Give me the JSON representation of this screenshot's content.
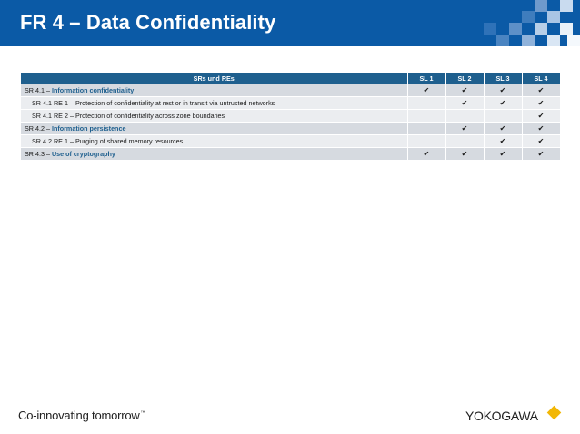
{
  "slide": {
    "title": "FR 4 – Data Confidentiality"
  },
  "table": {
    "headers": [
      "SRs und REs",
      "SL 1",
      "SL 2",
      "SL 3",
      "SL 4"
    ],
    "check_glyph": "✔",
    "rows": [
      {
        "type": "sr",
        "prefix": "SR 4.1 – ",
        "title": "Information confidentiality",
        "levels": [
          true,
          true,
          true,
          true
        ]
      },
      {
        "type": "re",
        "text": "SR 4.1 RE 1 – Protection of confidentiality at rest or in transit via untrusted networks",
        "levels": [
          false,
          true,
          true,
          true
        ]
      },
      {
        "type": "re",
        "text": "SR 4.1 RE 2 – Protection of confidentiality across zone boundaries",
        "levels": [
          false,
          false,
          false,
          true
        ]
      },
      {
        "type": "sr",
        "prefix": "SR 4.2 – ",
        "title": "Information persistence",
        "levels": [
          false,
          true,
          true,
          true
        ]
      },
      {
        "type": "re",
        "text": "SR 4.2 RE 1 – Purging of shared memory resources",
        "levels": [
          false,
          false,
          true,
          true
        ]
      },
      {
        "type": "sr",
        "prefix": "SR 4.3 – ",
        "title": "Use of cryptography",
        "levels": [
          true,
          true,
          true,
          true
        ]
      }
    ]
  },
  "footer": {
    "tagline": "Co-innovating tomorrow",
    "trademark": "™",
    "logo_text": "YOKOGAWA"
  },
  "colors": {
    "header_bg": "#0b5aa6",
    "table_header_bg": "#1e5f8e",
    "sr_row_bg": "#d6dae0",
    "re_row_bg": "#ebedf0",
    "logo_diamond": "#f2b705"
  }
}
